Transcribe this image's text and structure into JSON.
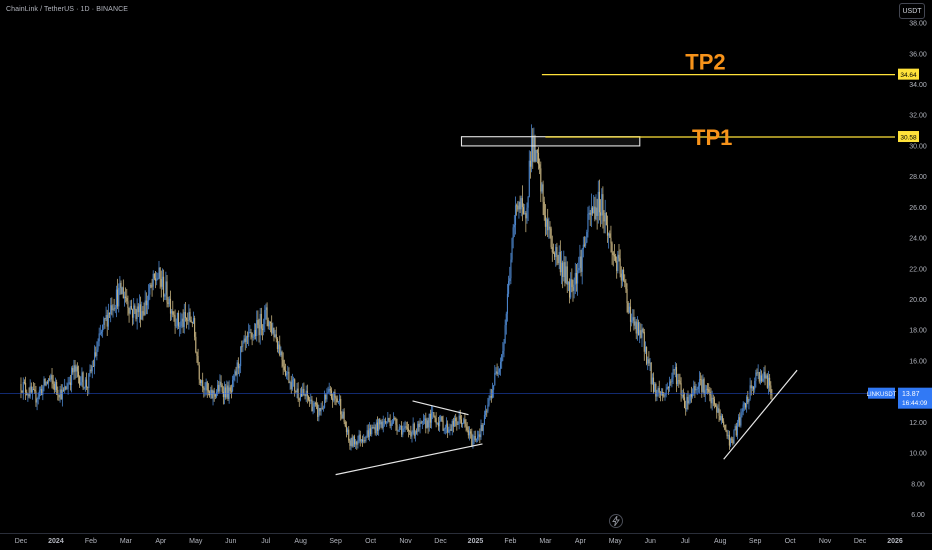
{
  "header": {
    "symbol_title": "ChainLink / TetherUS · 1D · BINANCE",
    "currency_label": "USDT"
  },
  "footer": {
    "lightning_icon": "lightning-icon"
  },
  "colors": {
    "background": "#000000",
    "axis_text": "#b2b5be",
    "candle_up": "#4b83c8",
    "candle_down": "#c3b07e",
    "target_line": "#ffe23a",
    "target_text": "#f7931a",
    "drawing": "#e6e6e6",
    "current_price_line": "#2962ff",
    "current_price_badge": "#3179f5"
  },
  "chart_data": {
    "type": "candlestick",
    "title": "ChainLink / TetherUS · 1D · BINANCE",
    "y_axis": {
      "unit": "USDT",
      "ticks": [
        "6.00",
        "8.00",
        "10.00",
        "12.00",
        "14.00",
        "16.00",
        "18.00",
        "20.00",
        "22.00",
        "24.00",
        "26.00",
        "28.00",
        "30.00",
        "32.00",
        "34.00",
        "36.00",
        "38.00"
      ],
      "range": [
        4.8,
        39.5
      ]
    },
    "x_axis": {
      "ticks": [
        "Dec",
        "2024",
        "Feb",
        "Mar",
        "Apr",
        "May",
        "Jun",
        "Jul",
        "Aug",
        "Sep",
        "Oct",
        "Nov",
        "Dec",
        "2025",
        "Feb",
        "Mar",
        "Apr",
        "May",
        "Jun",
        "Jul",
        "Aug",
        "Sep",
        "Oct",
        "Nov",
        "Dec",
        "2026"
      ],
      "bold_ticks": [
        "2024",
        "2025",
        "2026"
      ],
      "range_months": [
        -0.6,
        25.0
      ]
    },
    "price_path": [
      [
        0.0,
        14.5
      ],
      [
        0.4,
        13.6
      ],
      [
        0.8,
        14.8
      ],
      [
        1.2,
        13.8
      ],
      [
        1.5,
        15.4
      ],
      [
        1.9,
        14.4
      ],
      [
        2.3,
        17.8
      ],
      [
        2.6,
        19.8
      ],
      [
        2.9,
        20.6
      ],
      [
        3.2,
        19.2
      ],
      [
        3.5,
        19.4
      ],
      [
        3.9,
        21.6
      ],
      [
        4.2,
        20.2
      ],
      [
        4.5,
        18.4
      ],
      [
        4.9,
        18.8
      ],
      [
        5.1,
        15.2
      ],
      [
        5.4,
        13.6
      ],
      [
        5.7,
        14.3
      ],
      [
        6.0,
        13.8
      ],
      [
        6.3,
        16.6
      ],
      [
        6.6,
        17.6
      ],
      [
        7.0,
        19.0
      ],
      [
        7.3,
        17.6
      ],
      [
        7.6,
        15.2
      ],
      [
        7.9,
        14.0
      ],
      [
        8.2,
        13.6
      ],
      [
        8.5,
        12.6
      ],
      [
        8.8,
        13.8
      ],
      [
        9.1,
        13.4
      ],
      [
        9.4,
        10.6
      ],
      [
        9.8,
        11.1
      ],
      [
        10.2,
        11.8
      ],
      [
        10.6,
        12.2
      ],
      [
        11.0,
        11.4
      ],
      [
        11.4,
        11.6
      ],
      [
        11.8,
        12.4
      ],
      [
        12.2,
        11.6
      ],
      [
        12.6,
        12.2
      ],
      [
        12.9,
        10.8
      ],
      [
        13.2,
        11.6
      ],
      [
        13.5,
        14.4
      ],
      [
        13.8,
        17.0
      ],
      [
        14.0,
        22.4
      ],
      [
        14.2,
        26.8
      ],
      [
        14.4,
        24.8
      ],
      [
        14.6,
        30.2
      ],
      [
        14.8,
        28.4
      ],
      [
        15.0,
        25.2
      ],
      [
        15.2,
        23.4
      ],
      [
        15.4,
        22.6
      ],
      [
        15.7,
        20.8
      ],
      [
        16.0,
        22.4
      ],
      [
        16.3,
        25.6
      ],
      [
        16.6,
        26.4
      ],
      [
        16.9,
        23.2
      ],
      [
        17.2,
        21.4
      ],
      [
        17.5,
        18.4
      ],
      [
        17.8,
        17.4
      ],
      [
        18.1,
        14.2
      ],
      [
        18.4,
        13.8
      ],
      [
        18.7,
        15.4
      ],
      [
        19.0,
        13.2
      ],
      [
        19.4,
        14.8
      ],
      [
        19.7,
        13.6
      ],
      [
        20.0,
        12.4
      ],
      [
        20.3,
        10.6
      ],
      [
        20.6,
        12.4
      ],
      [
        20.9,
        14.2
      ],
      [
        21.1,
        15.2
      ],
      [
        21.3,
        14.8
      ],
      [
        21.5,
        13.87
      ]
    ],
    "current_price": {
      "symbol": "LINKUSDT",
      "value": "13.87",
      "countdown": "16:44:09"
    },
    "targets": [
      {
        "label": "TP2",
        "value": "34.64",
        "price": 34.64,
        "from_month": 14.9
      },
      {
        "label": "TP1",
        "value": "30.58",
        "price": 30.58,
        "from_month": 15.0
      }
    ],
    "zones": [
      {
        "name": "resistance-box",
        "from_month": 12.6,
        "to_month": 17.7,
        "low": 30.0,
        "high": 30.6
      }
    ],
    "trendlines": [
      {
        "name": "support-line-2024",
        "from": [
          9.0,
          8.6
        ],
        "to": [
          13.2,
          10.6
        ]
      },
      {
        "name": "wedge-upper-line",
        "from": [
          11.2,
          13.4
        ],
        "to": [
          12.8,
          12.5
        ]
      },
      {
        "name": "support-line-2025",
        "from": [
          20.1,
          9.6
        ],
        "to": [
          22.2,
          15.4
        ]
      }
    ]
  }
}
